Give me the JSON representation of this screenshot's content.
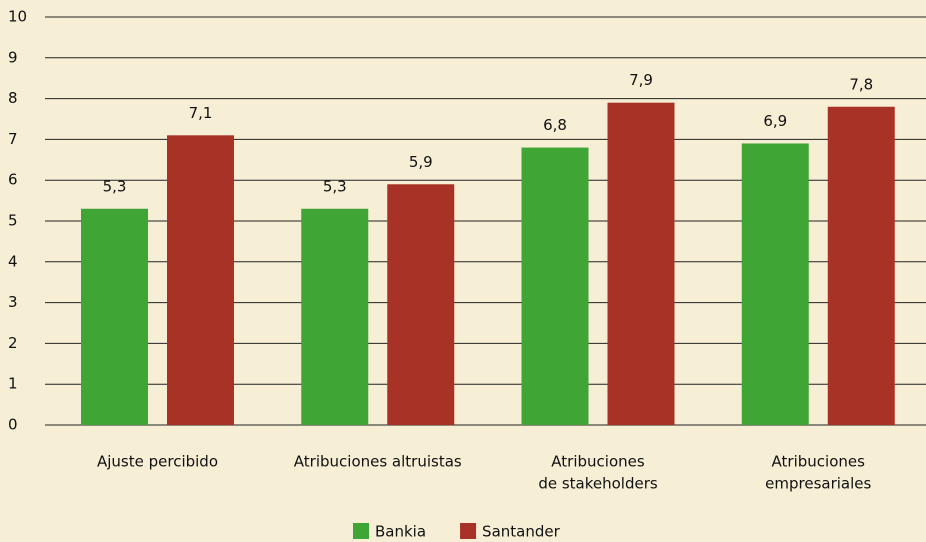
{
  "chart_data": {
    "type": "bar",
    "categories": [
      [
        "Ajuste percibido"
      ],
      [
        "Atribuciones altruistas"
      ],
      [
        "Atribuciones",
        "de stakeholders"
      ],
      [
        "Atribuciones",
        "empresariales"
      ]
    ],
    "series": [
      {
        "name": "Bankia",
        "color": "#3fa535",
        "values": [
          5.3,
          5.3,
          6.8,
          6.9
        ],
        "value_labels": [
          "5,3",
          "5,3",
          "6,8",
          "6,9"
        ]
      },
      {
        "name": "Santander",
        "color": "#a93226",
        "values": [
          7.1,
          5.9,
          7.9,
          7.8
        ],
        "value_labels": [
          "7,1",
          "5,9",
          "7,9",
          "7,8"
        ]
      }
    ],
    "ylim": [
      0,
      10
    ],
    "yticks": [
      0,
      1,
      2,
      3,
      4,
      5,
      6,
      7,
      8,
      9,
      10
    ],
    "grid": true,
    "legend": "bottom"
  }
}
